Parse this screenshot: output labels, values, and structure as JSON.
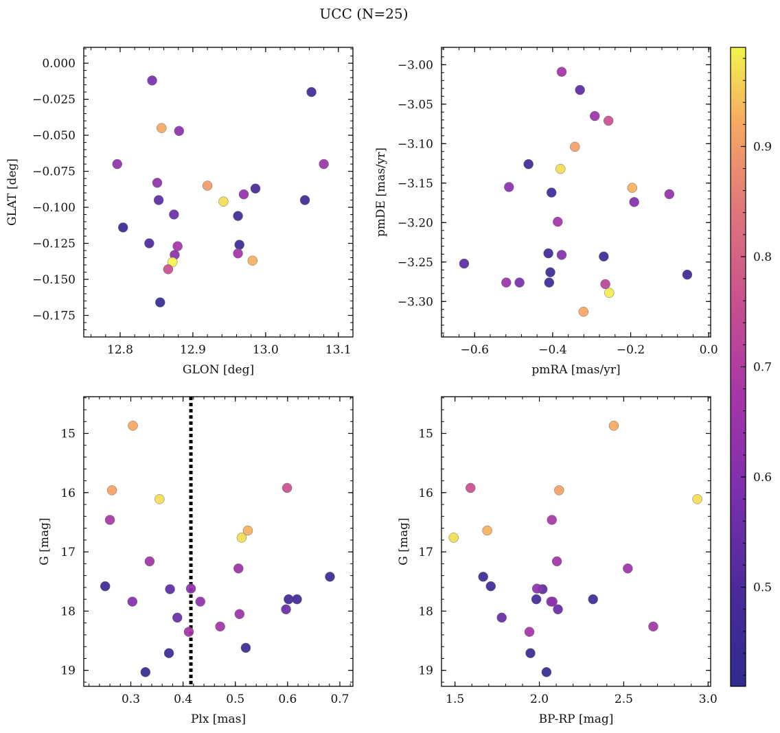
{
  "figure": {
    "title": "UCC (N=25)"
  },
  "chart_data": [
    {
      "type": "scatter",
      "xlabel": "GLON [deg]",
      "ylabel": "GLAT [deg]",
      "xlim": [
        12.75,
        13.12
      ],
      "ylim": [
        -0.19,
        0.011
      ],
      "y_inverted": false,
      "xticks": [
        12.8,
        12.9,
        13.0,
        13.1
      ],
      "xticklabels": [
        "12.8",
        "12.9",
        "13.0",
        "13.1"
      ],
      "yticks": [
        0.0,
        -0.025,
        -0.05,
        -0.075,
        -0.1,
        -0.125,
        -0.15,
        -0.175
      ],
      "yticklabels": [
        "0.000",
        "−0.025",
        "−0.050",
        "−0.075",
        "−0.100",
        "−0.125",
        "−0.150",
        "−0.175"
      ],
      "points": [
        {
          "x": 12.844,
          "y": -0.012,
          "c": 0.58
        },
        {
          "x": 13.063,
          "y": -0.02,
          "c": 0.47
        },
        {
          "x": 12.857,
          "y": -0.045,
          "c": 0.92
        },
        {
          "x": 12.881,
          "y": -0.047,
          "c": 0.62
        },
        {
          "x": 12.796,
          "y": -0.07,
          "c": 0.63
        },
        {
          "x": 13.08,
          "y": -0.07,
          "c": 0.65
        },
        {
          "x": 12.851,
          "y": -0.083,
          "c": 0.63
        },
        {
          "x": 12.92,
          "y": -0.085,
          "c": 0.9
        },
        {
          "x": 12.986,
          "y": -0.087,
          "c": 0.48
        },
        {
          "x": 12.97,
          "y": -0.091,
          "c": 0.64
        },
        {
          "x": 12.942,
          "y": -0.096,
          "c": 0.97
        },
        {
          "x": 12.853,
          "y": -0.095,
          "c": 0.53
        },
        {
          "x": 13.054,
          "y": -0.095,
          "c": 0.46
        },
        {
          "x": 12.874,
          "y": -0.105,
          "c": 0.56
        },
        {
          "x": 12.962,
          "y": -0.106,
          "c": 0.47
        },
        {
          "x": 12.804,
          "y": -0.114,
          "c": 0.44
        },
        {
          "x": 12.84,
          "y": -0.125,
          "c": 0.5
        },
        {
          "x": 12.964,
          "y": -0.126,
          "c": 0.45
        },
        {
          "x": 12.879,
          "y": -0.127,
          "c": 0.67
        },
        {
          "x": 12.962,
          "y": -0.132,
          "c": 0.67
        },
        {
          "x": 12.875,
          "y": -0.133,
          "c": 0.63
        },
        {
          "x": 12.982,
          "y": -0.137,
          "c": 0.93
        },
        {
          "x": 12.872,
          "y": -0.138,
          "c": 0.99
        },
        {
          "x": 12.866,
          "y": -0.143,
          "c": 0.76
        },
        {
          "x": 12.855,
          "y": -0.166,
          "c": 0.43
        }
      ]
    },
    {
      "type": "scatter",
      "xlabel": "pmRA [mas/yr]",
      "ylabel": "pmDE [mas/yr]",
      "xlim": [
        -0.685,
        0.005
      ],
      "ylim": [
        -3.345,
        -2.978
      ],
      "y_inverted": false,
      "xticks": [
        -0.6,
        -0.4,
        -0.2,
        0.0
      ],
      "xticklabels": [
        "−0.6",
        "−0.4",
        "−0.2",
        "0.0"
      ],
      "yticks": [
        -3.0,
        -3.05,
        -3.1,
        -3.15,
        -3.2,
        -3.25,
        -3.3
      ],
      "yticklabels": [
        "−3.00",
        "−3.05",
        "−3.10",
        "−3.15",
        "−3.20",
        "−3.25",
        "−3.30"
      ],
      "points": [
        {
          "x": -0.377,
          "y": -3.009,
          "c": 0.67
        },
        {
          "x": -0.33,
          "y": -3.032,
          "c": 0.53
        },
        {
          "x": -0.292,
          "y": -3.065,
          "c": 0.65
        },
        {
          "x": -0.257,
          "y": -3.071,
          "c": 0.76
        },
        {
          "x": -0.343,
          "y": -3.104,
          "c": 0.91
        },
        {
          "x": -0.462,
          "y": -3.126,
          "c": 0.47
        },
        {
          "x": -0.38,
          "y": -3.132,
          "c": 0.97
        },
        {
          "x": -0.512,
          "y": -3.155,
          "c": 0.62
        },
        {
          "x": -0.196,
          "y": -3.156,
          "c": 0.93
        },
        {
          "x": -0.403,
          "y": -3.162,
          "c": 0.46
        },
        {
          "x": -0.101,
          "y": -3.164,
          "c": 0.64
        },
        {
          "x": -0.191,
          "y": -3.174,
          "c": 0.6
        },
        {
          "x": -0.387,
          "y": -3.199,
          "c": 0.67
        },
        {
          "x": -0.411,
          "y": -3.239,
          "c": 0.47
        },
        {
          "x": -0.377,
          "y": -3.241,
          "c": 0.6
        },
        {
          "x": -0.269,
          "y": -3.243,
          "c": 0.45
        },
        {
          "x": -0.627,
          "y": -3.252,
          "c": 0.53
        },
        {
          "x": -0.406,
          "y": -3.263,
          "c": 0.45
        },
        {
          "x": -0.055,
          "y": -3.266,
          "c": 0.46
        },
        {
          "x": -0.519,
          "y": -3.276,
          "c": 0.65
        },
        {
          "x": -0.485,
          "y": -3.276,
          "c": 0.58
        },
        {
          "x": -0.409,
          "y": -3.276,
          "c": 0.45
        },
        {
          "x": -0.265,
          "y": -3.278,
          "c": 0.72
        },
        {
          "x": -0.255,
          "y": -3.289,
          "c": 0.98
        },
        {
          "x": -0.321,
          "y": -3.313,
          "c": 0.92
        }
      ]
    },
    {
      "type": "scatter",
      "xlabel": "Plx [mas]",
      "ylabel": "G [mag]",
      "xlim": [
        0.21,
        0.725
      ],
      "ylim": [
        14.38,
        19.27
      ],
      "y_inverted": true,
      "vline": 0.415,
      "xticks": [
        0.3,
        0.4,
        0.5,
        0.6,
        0.7
      ],
      "xticklabels": [
        "0.3",
        "0.4",
        "0.5",
        "0.6",
        "0.7"
      ],
      "yticks": [
        15,
        16,
        17,
        18,
        19
      ],
      "yticklabels": [
        "15",
        "16",
        "17",
        "18",
        "19"
      ],
      "points": [
        {
          "x": 0.304,
          "y": 14.87,
          "c": 0.92
        },
        {
          "x": 0.264,
          "y": 15.96,
          "c": 0.91
        },
        {
          "x": 0.599,
          "y": 15.92,
          "c": 0.76
        },
        {
          "x": 0.355,
          "y": 16.11,
          "c": 0.97
        },
        {
          "x": 0.26,
          "y": 16.46,
          "c": 0.68
        },
        {
          "x": 0.524,
          "y": 16.64,
          "c": 0.93
        },
        {
          "x": 0.512,
          "y": 16.76,
          "c": 0.97
        },
        {
          "x": 0.681,
          "y": 17.42,
          "c": 0.46
        },
        {
          "x": 0.336,
          "y": 17.16,
          "c": 0.66
        },
        {
          "x": 0.506,
          "y": 17.28,
          "c": 0.65
        },
        {
          "x": 0.251,
          "y": 17.58,
          "c": 0.46
        },
        {
          "x": 0.375,
          "y": 17.63,
          "c": 0.53
        },
        {
          "x": 0.415,
          "y": 17.62,
          "c": 0.62
        },
        {
          "x": 0.303,
          "y": 17.84,
          "c": 0.6
        },
        {
          "x": 0.433,
          "y": 17.84,
          "c": 0.63
        },
        {
          "x": 0.602,
          "y": 17.8,
          "c": 0.47
        },
        {
          "x": 0.618,
          "y": 17.8,
          "c": 0.47
        },
        {
          "x": 0.597,
          "y": 17.97,
          "c": 0.55
        },
        {
          "x": 0.508,
          "y": 18.05,
          "c": 0.65
        },
        {
          "x": 0.389,
          "y": 18.11,
          "c": 0.55
        },
        {
          "x": 0.471,
          "y": 18.26,
          "c": 0.67
        },
        {
          "x": 0.411,
          "y": 18.35,
          "c": 0.67
        },
        {
          "x": 0.52,
          "y": 18.62,
          "c": 0.45
        },
        {
          "x": 0.373,
          "y": 18.71,
          "c": 0.44
        },
        {
          "x": 0.328,
          "y": 19.03,
          "c": 0.43
        }
      ]
    },
    {
      "type": "scatter",
      "xlabel": "BP-RP [mag]",
      "ylabel": "G [mag]",
      "xlim": [
        1.42,
        3.015
      ],
      "ylim": [
        14.38,
        19.27
      ],
      "y_inverted": true,
      "xticks": [
        1.5,
        2.0,
        2.5,
        3.0
      ],
      "xticklabels": [
        "1.5",
        "2.0",
        "2.5",
        "3.0"
      ],
      "yticks": [
        15,
        16,
        17,
        18,
        19
      ],
      "yticklabels": [
        "15",
        "16",
        "17",
        "18",
        "19"
      ],
      "points": [
        {
          "x": 2.441,
          "y": 14.87,
          "c": 0.92
        },
        {
          "x": 1.592,
          "y": 15.92,
          "c": 0.76
        },
        {
          "x": 2.117,
          "y": 15.96,
          "c": 0.91
        },
        {
          "x": 2.936,
          "y": 16.11,
          "c": 0.97
        },
        {
          "x": 2.074,
          "y": 16.46,
          "c": 0.68
        },
        {
          "x": 1.691,
          "y": 16.64,
          "c": 0.93
        },
        {
          "x": 1.492,
          "y": 16.76,
          "c": 0.97
        },
        {
          "x": 2.524,
          "y": 17.28,
          "c": 0.65
        },
        {
          "x": 2.104,
          "y": 17.16,
          "c": 0.66
        },
        {
          "x": 1.667,
          "y": 17.42,
          "c": 0.46
        },
        {
          "x": 1.712,
          "y": 17.58,
          "c": 0.46
        },
        {
          "x": 2.019,
          "y": 17.63,
          "c": 0.53
        },
        {
          "x": 1.986,
          "y": 17.62,
          "c": 0.62
        },
        {
          "x": 1.982,
          "y": 17.8,
          "c": 0.47
        },
        {
          "x": 2.318,
          "y": 17.8,
          "c": 0.47
        },
        {
          "x": 2.07,
          "y": 17.84,
          "c": 0.6
        },
        {
          "x": 2.078,
          "y": 17.84,
          "c": 0.63
        },
        {
          "x": 2.11,
          "y": 17.97,
          "c": 0.55
        },
        {
          "x": 1.777,
          "y": 18.11,
          "c": 0.55
        },
        {
          "x": 2.675,
          "y": 18.26,
          "c": 0.67
        },
        {
          "x": 1.941,
          "y": 18.35,
          "c": 0.67
        },
        {
          "x": 1.947,
          "y": 18.71,
          "c": 0.44
        },
        {
          "x": 2.042,
          "y": 19.03,
          "c": 0.43
        }
      ]
    }
  ],
  "colorbar": {
    "colormap": "plasma",
    "range": [
      0.41,
      0.99
    ],
    "ticks": [
      0.5,
      0.6,
      0.7,
      0.8,
      0.9
    ],
    "ticklabels": [
      "0.5",
      "0.6",
      "0.7",
      "0.8",
      "0.9"
    ]
  }
}
